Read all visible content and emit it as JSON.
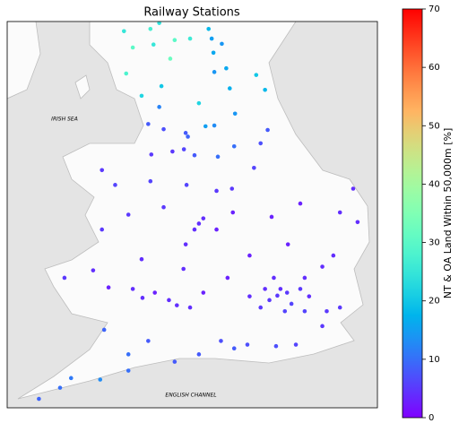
{
  "chart_data": {
    "type": "scatter",
    "title": "Railway Stations",
    "xlim": [
      -6.25,
      2.15
    ],
    "ylim": [
      50.0,
      55.2
    ],
    "colormap": "rainbow",
    "colorbar": {
      "label": "NT & OA Land Within 50,000m [%]",
      "lim": [
        0,
        70
      ],
      "ticks": [
        0,
        10,
        20,
        30,
        40,
        50,
        60,
        70
      ]
    },
    "map_labels": [
      "IRISH SEA",
      "ENGLISH CHANNEL"
    ],
    "x": [
      -0.12,
      -0.3,
      0.1,
      -0.05,
      0.2,
      -0.4,
      0.05,
      -0.5,
      0.4,
      -0.2,
      0.6,
      -0.75,
      0.5,
      1.0,
      1.3,
      0.9,
      -0.15,
      -0.8,
      0.3,
      -1.1,
      -1.4,
      -1.9,
      -2.45,
      1.3,
      1.7,
      0.12,
      1.15,
      0.9,
      0.5,
      -0.25,
      0.4,
      1.6,
      -1.9,
      -1.8,
      -2.0,
      -1.5,
      -1.15,
      -1.13,
      -1.5,
      -2.18,
      -2.7,
      -2.2,
      -1.25,
      -0.75,
      -1.8,
      -2.25,
      -2.58,
      -2.9,
      -3.18,
      -3.4,
      -3.95,
      -4.3,
      -4.95,
      -4.1,
      -3.8,
      -4.1,
      -3.0,
      -3.5,
      -3.2,
      -2.4,
      -3.5,
      -3.5,
      -4.14,
      -4.8,
      -5.05,
      -5.53,
      -3.05,
      -4.05,
      -2.1,
      -2.24,
      -2.5,
      -2.98,
      -2.7,
      -3.05,
      -2.2,
      -2.8,
      -2.75,
      -3.2,
      -3.55,
      -3.4,
      -2.93,
      -2.55,
      -2.15,
      -2.0,
      -1.55,
      -1.47,
      -1.08,
      -0.34,
      -1.75,
      -1.28,
      -1.9,
      -1.55,
      -1.2,
      -0.4,
      -0.6,
      -1.1,
      -0.65,
      -0.5,
      -1.61,
      -1.38,
      -1.57,
      -1.68,
      -2.1,
      -2.45,
      -3.0,
      -3.6,
      -2.8
    ],
    "y": [
      51.51,
      51.45,
      51.55,
      51.6,
      51.4,
      51.6,
      51.3,
      51.35,
      51.6,
      51.75,
      51.5,
      51.5,
      51.3,
      51.3,
      51.35,
      51.1,
      50.83,
      50.85,
      50.85,
      50.8,
      50.9,
      50.72,
      50.62,
      52.63,
      52.5,
      52.2,
      52.05,
      51.9,
      51.75,
      52.57,
      52.75,
      52.95,
      52.48,
      52.55,
      52.4,
      52.4,
      52.95,
      52.63,
      52.92,
      53.0,
      52.7,
      52.2,
      51.75,
      52.05,
      51.55,
      51.87,
      51.45,
      51.55,
      51.48,
      51.6,
      51.62,
      51.85,
      51.75,
      52.4,
      53.0,
      53.2,
      53.05,
      52.6,
      52.0,
      51.38,
      50.72,
      50.5,
      50.38,
      50.4,
      50.27,
      50.12,
      50.9,
      51.05,
      51.35,
      53.48,
      53.45,
      53.41,
      53.75,
      53.82,
      53.7,
      54.05,
      54.33,
      54.2,
      54.5,
      54.85,
      54.89,
      54.7,
      53.65,
      53.4,
      53.8,
      53.38,
      53.96,
      53.74,
      53.79,
      54.57,
      54.1,
      54.52,
      54.3,
      54.28,
      54.48,
      53.52,
      53.23,
      53.56,
      54.97,
      54.9,
      54.78,
      55.1,
      54.97,
      54.95,
      55.1,
      55.07,
      55.18
    ],
    "values": [
      5,
      5,
      5,
      4,
      6,
      4,
      6,
      5,
      5,
      4,
      4,
      4,
      6,
      5,
      5,
      5,
      7,
      7,
      6,
      8,
      7,
      8,
      8,
      4,
      4,
      3,
      4,
      4,
      4,
      3,
      3,
      4,
      4,
      4,
      4,
      3,
      5,
      3,
      5,
      6,
      5,
      4,
      3,
      3,
      3,
      4,
      4,
      3,
      4,
      4,
      3,
      4,
      5,
      5,
      6,
      5,
      6,
      5,
      4,
      4,
      10,
      10,
      13,
      11,
      10,
      9,
      8,
      9,
      4,
      6,
      5,
      5,
      7,
      8,
      8,
      12,
      20,
      22,
      28,
      30,
      25,
      32,
      9,
      8,
      13,
      10,
      14,
      8,
      15,
      16,
      22,
      14,
      17,
      18,
      20,
      10,
      6,
      7,
      15,
      14,
      16,
      18,
      26,
      30,
      27,
      25,
      24
    ]
  }
}
